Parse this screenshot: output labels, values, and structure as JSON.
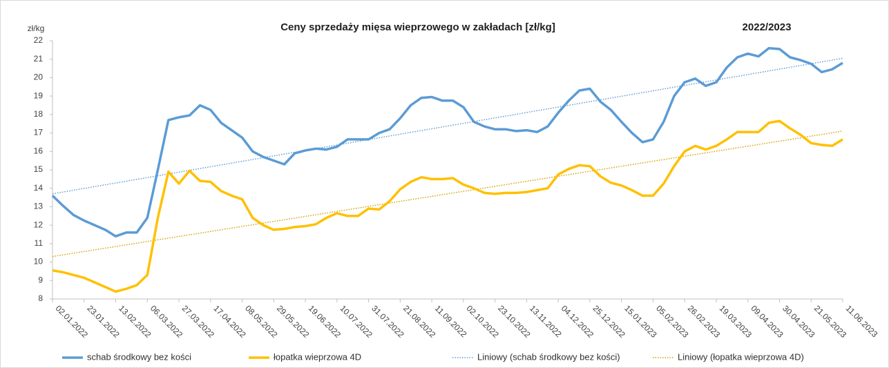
{
  "chart_data": {
    "type": "line",
    "title": "Ceny sprzedaży mięsa wieprzowego w zakładach [zł/kg]",
    "subtitle": "2022/2023",
    "y_label": "zł/kg",
    "categories": [
      "02.01.2022",
      null,
      null,
      "23.01.2022",
      null,
      null,
      "13.02.2022",
      null,
      null,
      "06.03.2022",
      null,
      null,
      "27.03.2022",
      null,
      null,
      "17.04.2022",
      null,
      null,
      "08.05.2022",
      null,
      null,
      "29.05.2022",
      null,
      null,
      "19.06.2022",
      null,
      null,
      "10.07.2022",
      null,
      null,
      "31.07.2022",
      null,
      null,
      "21.08.2022",
      null,
      null,
      "11.09.2022",
      null,
      null,
      "02.10.2022",
      null,
      null,
      "23.10.2022",
      null,
      null,
      "13.11.2022",
      null,
      null,
      "04.12.2022",
      null,
      null,
      "25.12.2022",
      null,
      null,
      "15.01.2023",
      null,
      null,
      "05.02.2023",
      null,
      null,
      "26.02.2023",
      null,
      null,
      "19.03.2023",
      null,
      null,
      "09.04.2023",
      null,
      null,
      "30.04.2023",
      null,
      null,
      "21.05.2023",
      null,
      null,
      "11.06.2023"
    ],
    "series": [
      {
        "name": "schab środkowy bez kości",
        "color": "#5b9bd5",
        "values": [
          13.6,
          13.05,
          12.55,
          12.25,
          12.0,
          11.75,
          11.4,
          11.6,
          11.6,
          12.4,
          15.0,
          17.7,
          17.85,
          17.95,
          18.5,
          18.25,
          17.55,
          17.15,
          16.75,
          16.0,
          15.7,
          15.5,
          15.3,
          15.9,
          16.05,
          16.15,
          16.1,
          16.25,
          16.65,
          16.65,
          16.65,
          17.0,
          17.2,
          17.8,
          18.5,
          18.9,
          18.95,
          18.75,
          18.75,
          18.4,
          17.6,
          17.35,
          17.2,
          17.2,
          17.1,
          17.15,
          17.05,
          17.35,
          18.1,
          18.75,
          19.3,
          19.4,
          18.7,
          18.25,
          17.6,
          17.0,
          16.5,
          16.65,
          17.6,
          19.0,
          19.75,
          19.95,
          19.55,
          19.75,
          20.55,
          21.1,
          21.3,
          21.15,
          21.6,
          21.55,
          21.1,
          20.95,
          20.75,
          20.3,
          20.45,
          20.8
        ]
      },
      {
        "name": "łopatka wieprzowa 4D",
        "color": "#ffc000",
        "values": [
          9.55,
          9.45,
          9.3,
          9.15,
          8.9,
          8.65,
          8.4,
          8.55,
          8.75,
          9.3,
          12.4,
          14.9,
          14.25,
          14.95,
          14.4,
          14.35,
          13.85,
          13.6,
          13.4,
          12.4,
          12.0,
          11.75,
          11.8,
          11.9,
          11.95,
          12.05,
          12.4,
          12.65,
          12.5,
          12.5,
          12.9,
          12.85,
          13.3,
          13.95,
          14.35,
          14.6,
          14.5,
          14.5,
          14.55,
          14.2,
          14.0,
          13.75,
          13.7,
          13.75,
          13.75,
          13.8,
          13.9,
          14.0,
          14.75,
          15.05,
          15.25,
          15.2,
          14.65,
          14.3,
          14.15,
          13.9,
          13.6,
          13.6,
          14.25,
          15.2,
          16.0,
          16.3,
          16.1,
          16.3,
          16.65,
          17.05,
          17.05,
          17.05,
          17.55,
          17.65,
          17.25,
          16.9,
          16.45,
          16.35,
          16.3,
          16.65
        ]
      }
    ],
    "trendlines": [
      {
        "name": "Liniowy (schab środkowy bez kości)",
        "color": "#5b9bd5",
        "values": [
          13.7,
          21.05
        ]
      },
      {
        "name": "Liniowy (łopatka wieprzowa 4D)",
        "color": "#d4a000",
        "values": [
          10.3,
          17.1
        ]
      }
    ],
    "ylim": [
      8,
      22
    ],
    "yticks": [
      8,
      9,
      10,
      11,
      12,
      13,
      14,
      15,
      16,
      17,
      18,
      19,
      20,
      21,
      22
    ],
    "grid": false,
    "legend": "bottom"
  }
}
